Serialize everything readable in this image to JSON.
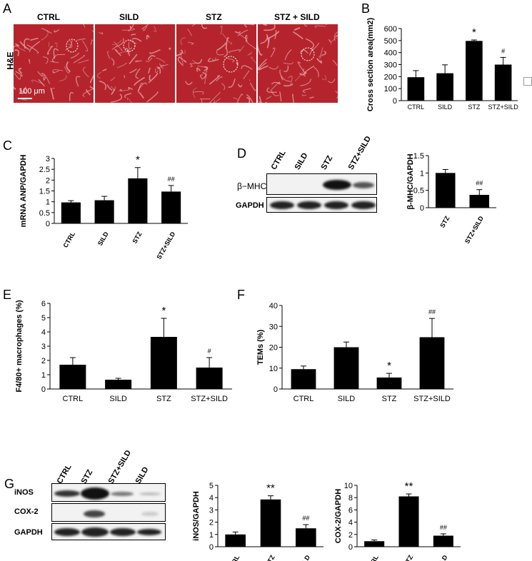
{
  "panel_letters": [
    "A",
    "B",
    "C",
    "D",
    "E",
    "F",
    "G"
  ],
  "panel_a": {
    "row_label": "H&E",
    "columns": [
      "CTRL",
      "SILD",
      "STZ",
      "STZ + SILD"
    ],
    "scale_bar": "100 μm"
  },
  "panel_d_blot": {
    "columns": [
      "CTRL",
      "SILD",
      "STZ",
      "STZ+SILD"
    ],
    "rows": [
      "β−MHC",
      "GAPDH"
    ]
  },
  "panel_g_blot": {
    "columns": [
      "CTRL",
      "STZ",
      "STZ+SILD",
      "SILD"
    ],
    "rows": [
      "iNOS",
      "COX-2",
      "GAPDH"
    ]
  },
  "colors": {
    "bar": "#000000",
    "tissue": "#b5242c",
    "tissue_light": "#e6a8ad"
  },
  "chart_data": [
    {
      "id": "B",
      "type": "bar",
      "categories": [
        "CTRL",
        "SILD",
        "STZ",
        "STZ+SILD"
      ],
      "values": [
        195,
        228,
        497,
        300
      ],
      "errors": [
        55,
        70,
        8,
        60
      ],
      "annotations": [
        "",
        "",
        "*",
        "#"
      ],
      "ylabel": "Cross section area(mm2)",
      "ylim": [
        0,
        600
      ],
      "yticks": [
        0,
        100,
        200,
        300,
        400,
        500,
        600
      ]
    },
    {
      "id": "C",
      "type": "bar",
      "categories": [
        "CTRL",
        "SILD",
        "STZ",
        "STZ+SILD"
      ],
      "values": [
        0.97,
        1.07,
        2.08,
        1.47
      ],
      "errors": [
        0.08,
        0.18,
        0.5,
        0.28
      ],
      "annotations": [
        "",
        "",
        "*",
        "##"
      ],
      "ylabel": "mRNA ANP/GAPDH",
      "ylim": [
        0,
        3
      ],
      "yticks": [
        0,
        0.5,
        1,
        1.5,
        2,
        2.5,
        3
      ]
    },
    {
      "id": "D",
      "type": "bar",
      "categories": [
        "STZ",
        "STZ+SILD"
      ],
      "values": [
        1.0,
        0.37
      ],
      "errors": [
        0.1,
        0.15
      ],
      "annotations": [
        "",
        "##"
      ],
      "ylabel": "β-MHC/GAPDH",
      "ylim": [
        0,
        1.5
      ],
      "yticks": [
        0,
        0.5,
        1,
        1.5
      ]
    },
    {
      "id": "E",
      "type": "bar",
      "categories": [
        "CTRL",
        "SILD",
        "STZ",
        "STZ+SILD"
      ],
      "values": [
        1.7,
        0.65,
        3.65,
        1.5
      ],
      "errors": [
        0.5,
        0.1,
        1.3,
        0.7
      ],
      "annotations": [
        "",
        "",
        "*",
        "#"
      ],
      "ylabel": "F4/80+ macrophages (%)",
      "ylim": [
        0,
        6
      ],
      "yticks": [
        0,
        1,
        2,
        3,
        4,
        5,
        6
      ]
    },
    {
      "id": "F",
      "type": "bar",
      "categories": [
        "CTRL",
        "SILD",
        "STZ",
        "STZ+SILD"
      ],
      "values": [
        9.5,
        20,
        5.5,
        24.8
      ],
      "errors": [
        1.5,
        2.5,
        2,
        9
      ],
      "annotations": [
        "",
        "",
        "*",
        "##"
      ],
      "ylabel": "TEMs (%)",
      "ylim": [
        0,
        40
      ],
      "yticks": [
        0,
        10,
        20,
        30,
        40
      ]
    },
    {
      "id": "G1",
      "type": "bar",
      "categories": [
        "CTRL",
        "STZ",
        "STZ+SILD"
      ],
      "values": [
        1.0,
        3.85,
        1.5
      ],
      "errors": [
        0.2,
        0.3,
        0.3
      ],
      "annotations": [
        "",
        "**",
        "##"
      ],
      "ylabel": "iNOS/GAPDH",
      "ylim": [
        0,
        5
      ],
      "yticks": [
        0,
        1,
        2,
        3,
        4,
        5
      ]
    },
    {
      "id": "G2",
      "type": "bar",
      "categories": [
        "CTRL",
        "STZ",
        "STZ+SILD"
      ],
      "values": [
        0.9,
        8.2,
        1.8
      ],
      "errors": [
        0.2,
        0.4,
        0.3
      ],
      "annotations": [
        "",
        "**",
        "##"
      ],
      "ylabel": "COX-2/GAPDH",
      "ylim": [
        0,
        10
      ],
      "yticks": [
        0,
        2,
        4,
        6,
        8,
        10
      ]
    }
  ]
}
